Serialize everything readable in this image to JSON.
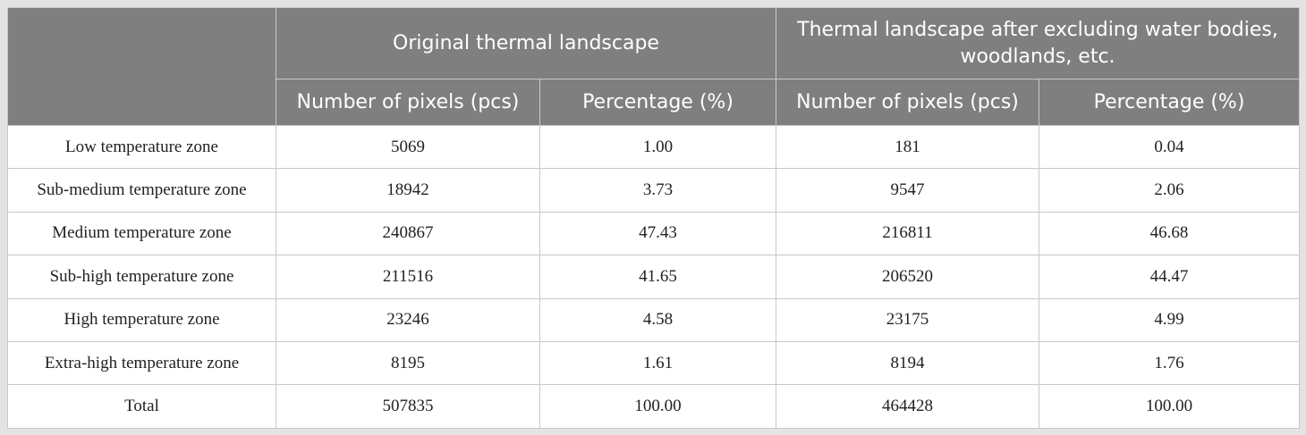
{
  "table": {
    "header": {
      "groups": [
        "Original thermal landscape",
        "Thermal landscape after excluding water bodies, woodlands, etc."
      ],
      "columns": [
        "Number of pixels (pcs)",
        "Percentage (%)",
        "Number of pixels (pcs)",
        "Percentage (%)"
      ]
    },
    "rows": [
      [
        "Low temperature zone",
        "5069",
        "1.00",
        "181",
        "0.04"
      ],
      [
        "Sub-medium temperature zone",
        "18942",
        "3.73",
        "9547",
        "2.06"
      ],
      [
        "Medium temperature zone",
        "240867",
        "47.43",
        "216811",
        "46.68"
      ],
      [
        "Sub-high temperature zone",
        "211516",
        "41.65",
        "206520",
        "44.47"
      ],
      [
        "High temperature zone",
        "23246",
        "4.58",
        "23175",
        "4.99"
      ],
      [
        "Extra-high temperature zone",
        "8195",
        "1.61",
        "8194",
        "1.76"
      ],
      [
        "Total",
        "507835",
        "100.00",
        "464428",
        "100.00"
      ]
    ]
  }
}
